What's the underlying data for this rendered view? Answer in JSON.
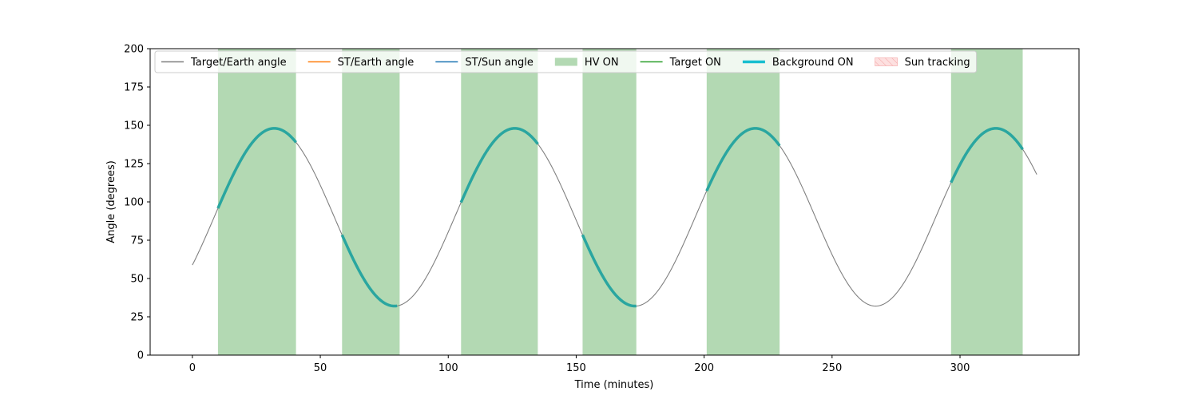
{
  "chart_data": {
    "type": "line",
    "title": "",
    "xlabel": "Time (minutes)",
    "ylabel": "Angle (degrees)",
    "xlim": [
      -16.5,
      346.5
    ],
    "ylim": [
      0,
      200
    ],
    "xticks": [
      0,
      50,
      100,
      150,
      200,
      250,
      300
    ],
    "yticks": [
      0,
      25,
      50,
      75,
      100,
      125,
      150,
      175,
      200
    ],
    "grid": false,
    "legend_position": "top",
    "target_earth_curve": {
      "x_range": [
        0,
        330
      ],
      "mean": 90,
      "amplitude": 58,
      "period_minutes": 94,
      "peak_minute": 32,
      "min_value": 32,
      "max_value": 148
    },
    "hv_on_intervals": [
      [
        10,
        40.5
      ],
      [
        58.5,
        81
      ],
      [
        105,
        135
      ],
      [
        152.5,
        173.5
      ],
      [
        201,
        229.5
      ],
      [
        296.5,
        324.5
      ]
    ],
    "background_on_intervals": [
      [
        10,
        40.5
      ],
      [
        58.5,
        80
      ],
      [
        105,
        135
      ],
      [
        152.5,
        173.5
      ],
      [
        201,
        229.5
      ],
      [
        296.5,
        324.5
      ]
    ],
    "colors": {
      "target_earth": "#808080",
      "st_earth": "#ff7f0e",
      "st_sun": "#1f77b4",
      "hv_on": "#b3d9b3",
      "target_on": "#2ca02c",
      "background_on": "#2aa6a0",
      "background_on_legend": "#17becf",
      "sun_tracking_face": "#fde0e0",
      "sun_tracking_edge": "#f4a6a6"
    },
    "legend": [
      {
        "key": "target_earth",
        "label": "Target/Earth angle",
        "kind": "line"
      },
      {
        "key": "st_earth",
        "label": "ST/Earth angle",
        "kind": "line"
      },
      {
        "key": "st_sun",
        "label": "ST/Sun angle",
        "kind": "line"
      },
      {
        "key": "hv_on",
        "label": "HV ON",
        "kind": "patch"
      },
      {
        "key": "target_on",
        "label": "Target ON",
        "kind": "line"
      },
      {
        "key": "background_on_legend",
        "label": "Background ON",
        "kind": "thickline"
      },
      {
        "key": "sun_tracking",
        "label": "Sun tracking",
        "kind": "hatch"
      }
    ]
  }
}
